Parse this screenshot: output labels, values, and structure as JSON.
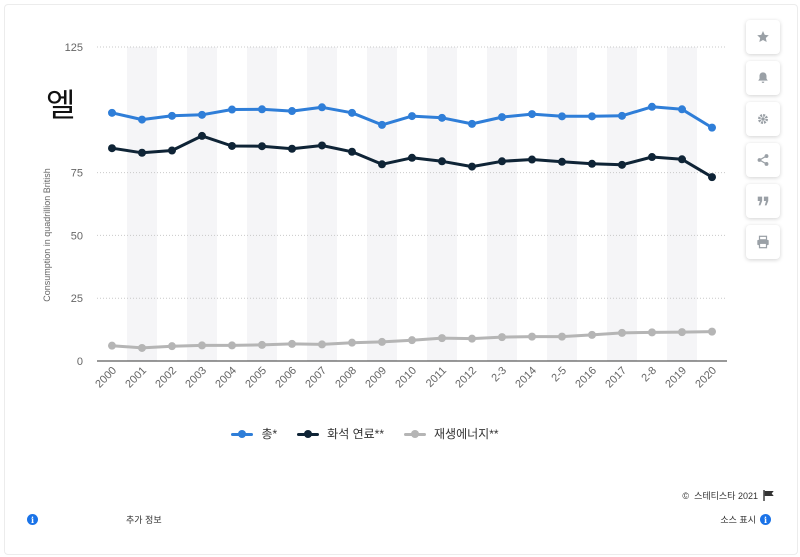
{
  "chart_data": {
    "type": "line",
    "title": "",
    "ylabel": "Consumption in quadrillion British",
    "xlabel": "",
    "ylim": [
      0,
      125
    ],
    "yticks": [
      0,
      25,
      50,
      75,
      125
    ],
    "grid": true,
    "legend_position": "bottom",
    "categories": [
      "2000",
      "2001",
      "2002",
      "2003",
      "2004",
      "2005",
      "2006",
      "2007",
      "2008",
      "2009",
      "2010",
      "2011",
      "2012",
      "2013",
      "2014",
      "2015",
      "2016",
      "2017",
      "2018",
      "2019",
      "2020"
    ],
    "x_tick_labels": [
      "2000",
      "2001",
      "2002",
      "2003",
      "2004",
      "2005",
      "2006",
      "2007",
      "2008",
      "2009",
      "2010",
      "2011",
      "2012",
      "2-3",
      "2014",
      "2-5",
      "2016",
      "2017",
      "2-8",
      "2019",
      "2020"
    ],
    "series": [
      {
        "name": "총*",
        "color": "#2f7ed8",
        "values": [
          98.8,
          96.1,
          97.6,
          98.0,
          100.1,
          100.2,
          99.5,
          101.0,
          98.8,
          94.0,
          97.5,
          96.8,
          94.4,
          97.1,
          98.3,
          97.4,
          97.4,
          97.6,
          101.2,
          100.2,
          92.9
        ]
      },
      {
        "name": "화석 연료**",
        "color": "#0f2436",
        "values": [
          84.7,
          82.9,
          83.8,
          89.6,
          85.6,
          85.5,
          84.5,
          85.8,
          83.3,
          78.3,
          80.9,
          79.5,
          77.4,
          79.5,
          80.2,
          79.3,
          78.5,
          78.1,
          81.2,
          80.3,
          73.2
        ]
      },
      {
        "name": "재생에너지**",
        "color": "#b5b5b5",
        "values": [
          6.1,
          5.2,
          5.9,
          6.2,
          6.2,
          6.4,
          6.8,
          6.6,
          7.3,
          7.6,
          8.3,
          9.1,
          8.9,
          9.5,
          9.7,
          9.7,
          10.4,
          11.2,
          11.4,
          11.5,
          11.7
        ]
      }
    ]
  },
  "overlay_glyph": "엘",
  "footer": {
    "copyright": "스테티스타 2021",
    "more_info": "추가 정보",
    "show_source": "소스 표시"
  },
  "icons": {
    "star": "star-icon",
    "bell": "bell-icon",
    "gear": "gear-icon",
    "share": "share-icon",
    "quote": "quote-icon",
    "print": "print-icon",
    "flag": "flag-icon",
    "info": "info-icon"
  }
}
